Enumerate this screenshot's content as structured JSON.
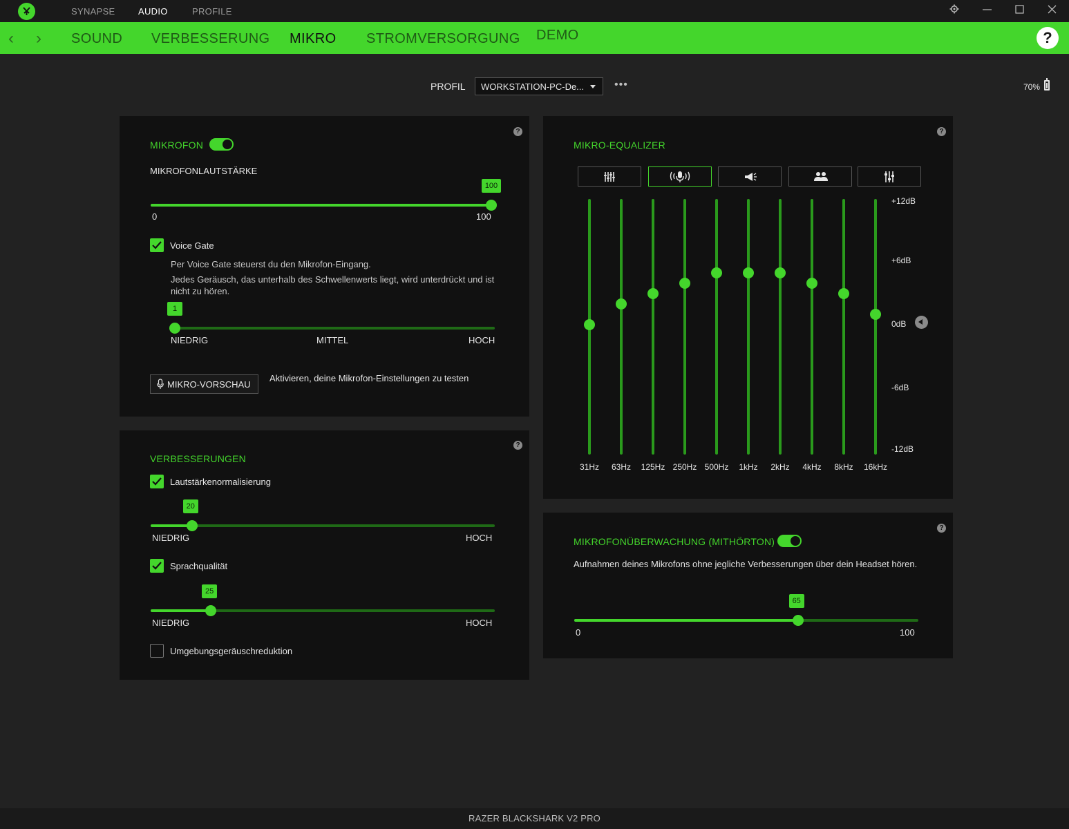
{
  "titlebar": {
    "tabs": [
      "SYNAPSE",
      "AUDIO",
      "PROFILE"
    ],
    "active_tab": "AUDIO"
  },
  "nav": {
    "tabs": [
      "SOUND",
      "VERBESSERUNG",
      "MIKRO",
      "STROMVERSORGUNG",
      "DEMO"
    ],
    "active_tab": "MIKRO",
    "help": "?"
  },
  "profile": {
    "label": "PROFIL",
    "selected": "WORKSTATION-PC-De...",
    "more": "•••",
    "battery": "70%"
  },
  "mikrofon": {
    "title": "MIKROFON",
    "enabled": true,
    "volume_label": "MIKROFONLAUTSTÄRKE",
    "volume_value": "100",
    "volume_min": "0",
    "volume_max": "100",
    "voice_gate": {
      "label": "Voice Gate",
      "checked": true,
      "desc1": "Per Voice Gate steuerst du den Mikrofon-Eingang.",
      "desc2": "Jedes Geräusch, das unterhalb des Schwellenwerts liegt, wird unterdrückt und ist nicht zu hören.",
      "value": "1",
      "low": "NIEDRIG",
      "mid": "MITTEL",
      "high": "HOCH"
    },
    "preview_button": "MIKRO-VORSCHAU",
    "preview_desc": "Aktivieren, deine Mikrofon-Einstellungen zu testen"
  },
  "verbesserungen": {
    "title": "VERBESSERUNGEN",
    "normalization": {
      "label": "Lautstärkenormalisierung",
      "checked": true,
      "value": "20",
      "low": "NIEDRIG",
      "high": "HOCH"
    },
    "voice_quality": {
      "label": "Sprachqualität",
      "checked": true,
      "value": "25",
      "low": "NIEDRIG",
      "high": "HOCH"
    },
    "noise_reduction": {
      "label": "Umgebungsgeräuschreduktion",
      "checked": false
    }
  },
  "equalizer": {
    "title": "MIKRO-EQUALIZER",
    "presets": [
      "equalizer-sliders-icon",
      "microphone-broadcast-icon",
      "megaphone-icon",
      "two-people-icon",
      "custom-sliders-icon"
    ],
    "active_preset": 1,
    "db_labels": [
      "+12dB",
      "+6dB",
      "0dB",
      "-6dB",
      "-12dB"
    ],
    "bands": [
      {
        "freq": "31Hz",
        "db": 0
      },
      {
        "freq": "63Hz",
        "db": 2
      },
      {
        "freq": "125Hz",
        "db": 3
      },
      {
        "freq": "250Hz",
        "db": 4
      },
      {
        "freq": "500Hz",
        "db": 5
      },
      {
        "freq": "1kHz",
        "db": 5
      },
      {
        "freq": "2kHz",
        "db": 5
      },
      {
        "freq": "4kHz",
        "db": 4
      },
      {
        "freq": "8kHz",
        "db": 3
      },
      {
        "freq": "16kHz",
        "db": 1
      }
    ]
  },
  "monitoring": {
    "title": "MIKROFONÜBERWACHUNG (MITHÖRTON)",
    "enabled": true,
    "desc": "Aufnahmen deines Mikrofons ohne jegliche Verbesserungen über dein Headset hören.",
    "value": "65",
    "min": "0",
    "max": "100"
  },
  "footer": {
    "device": "RAZER BLACKSHARK V2 PRO"
  },
  "colors": {
    "accent": "#44d62c",
    "panel": "#111111",
    "background": "#222222"
  }
}
